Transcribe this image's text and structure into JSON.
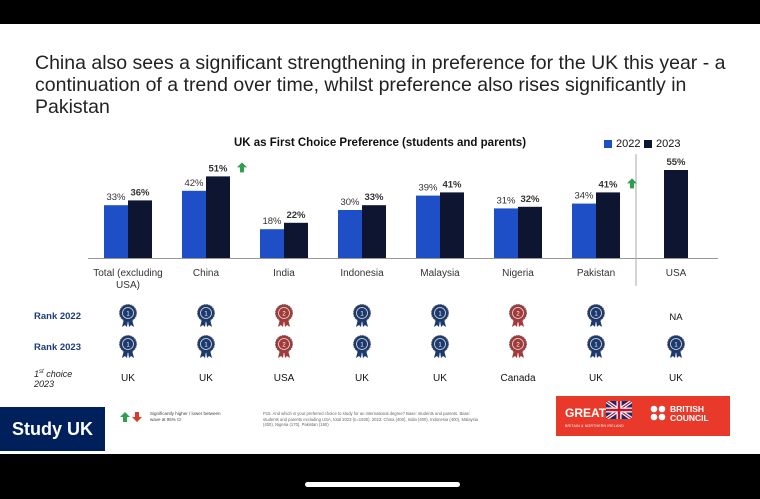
{
  "slide": {
    "title": "China also sees a significant strengthening in preference for the UK this year - a continuation of a trend over time, whilst preference also rises significantly in Pakistan"
  },
  "chart_data": {
    "type": "bar",
    "title": "UK as First Choice Preference (students and parents)",
    "categories": [
      "Total (excluding USA)",
      "China",
      "India",
      "Indonesia",
      "Malaysia",
      "Nigeria",
      "Pakistan",
      "USA"
    ],
    "series": [
      {
        "name": "2022",
        "color": "#1f4fc6",
        "values": [
          33,
          42,
          18,
          30,
          39,
          31,
          34,
          null
        ],
        "labels": [
          "33%",
          "42%",
          "18%",
          "30%",
          "39%",
          "31%",
          "34%",
          ""
        ]
      },
      {
        "name": "2023",
        "color": "#0d1530",
        "values": [
          36,
          51,
          22,
          33,
          41,
          32,
          41,
          55
        ],
        "labels": [
          "36%",
          "51%",
          "22%",
          "33%",
          "41%",
          "32%",
          "41%",
          "55%"
        ]
      }
    ],
    "significant_up": [
      "China",
      "Pakistan"
    ],
    "ylim": [
      0,
      60
    ],
    "grid": false,
    "legend_position": "top-right"
  },
  "rows": {
    "rank2022_label": "Rank 2022",
    "rank2023_label": "Rank 2023",
    "choice_label_prefix": "1",
    "choice_label_sup": "st",
    "choice_label_rest": " choice",
    "choice_label_year": "2023",
    "rank2022": [
      "1",
      "1",
      "2",
      "1",
      "1",
      "2",
      "1",
      "NA"
    ],
    "rank2023": [
      "1",
      "1",
      "2",
      "1",
      "1",
      "2",
      "1",
      "1"
    ],
    "first_choice_2023": [
      "UK",
      "UK",
      "USA",
      "UK",
      "UK",
      "Canada",
      "UK",
      "UK"
    ]
  },
  "footer": {
    "logo": "Study UK",
    "significance_note": "Significantly higher / lower between wave at 95% CI",
    "footnote": "P15. And which is your preferred choice to study for an international degree? Base: students and parents. Base: students and parents excluding USA, total 2023 (n=1930). 2023: China (400), India (400), Indonesia (400), Malaysia (400), Nigeria (170), Pakistan (160)",
    "great_logo": "GREAT",
    "great_sub": "BRITAIN & NORTHERN IRELAND",
    "bc_logo_line1": "BRITISH",
    "bc_logo_line2": "COUNCIL"
  },
  "colors": {
    "medal_gold": "#1d3a6e",
    "medal_silver": "#a33a3a",
    "up_arrow": "#2e9e4f",
    "down_arrow": "#d93a2b"
  }
}
